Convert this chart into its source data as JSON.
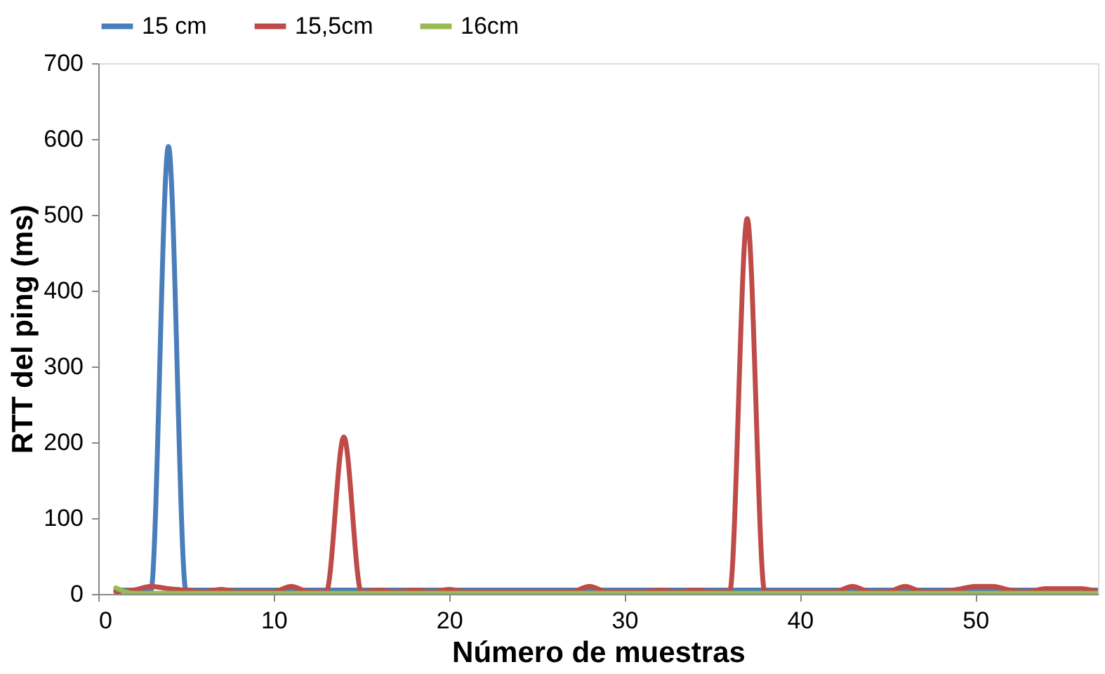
{
  "chart_data": {
    "type": "line",
    "xlabel": "Número de muestras",
    "ylabel": "RTT del ping (ms)",
    "x": [
      1,
      2,
      3,
      4,
      5,
      6,
      7,
      8,
      9,
      10,
      11,
      12,
      13,
      14,
      15,
      16,
      17,
      18,
      19,
      20,
      21,
      22,
      23,
      24,
      25,
      26,
      27,
      28,
      29,
      30,
      31,
      32,
      33,
      34,
      35,
      36,
      37,
      38,
      39,
      40,
      41,
      42,
      43,
      44,
      45,
      46,
      47,
      48,
      49,
      50,
      51,
      52,
      53,
      54,
      55,
      56,
      57
    ],
    "series": [
      {
        "name": "15 cm",
        "color": "#4a7ebb",
        "values": [
          5,
          5,
          5,
          590,
          5,
          5,
          5,
          5,
          5,
          5,
          5,
          5,
          5,
          5,
          5,
          5,
          5,
          5,
          5,
          5,
          5,
          5,
          5,
          5,
          5,
          5,
          5,
          5,
          5,
          5,
          5,
          5,
          5,
          5,
          5,
          5,
          5,
          5,
          5,
          5,
          5,
          5,
          5,
          5,
          5,
          5,
          5,
          5,
          5,
          5,
          5,
          5,
          5,
          5,
          5,
          5,
          5
        ]
      },
      {
        "name": "15,5cm",
        "color": "#be4b48",
        "values": [
          3,
          5,
          10,
          7,
          5,
          3,
          6,
          3,
          3,
          3,
          10,
          3,
          3,
          207,
          3,
          5,
          3,
          5,
          3,
          6,
          3,
          3,
          3,
          3,
          3,
          3,
          3,
          10,
          3,
          3,
          3,
          5,
          3,
          5,
          3,
          3,
          495,
          3,
          3,
          3,
          3,
          3,
          10,
          3,
          3,
          10,
          3,
          3,
          6,
          10,
          10,
          5,
          3,
          7,
          7,
          7,
          3
        ]
      },
      {
        "name": "16cm",
        "color": "#98b954",
        "values": [
          8,
          1,
          1,
          1,
          1,
          1,
          1,
          1,
          1,
          1,
          1,
          1,
          1,
          1,
          1,
          1,
          1,
          1,
          1,
          1,
          1,
          1,
          1,
          1,
          1,
          1,
          1,
          1,
          1,
          1,
          1,
          1,
          1,
          1,
          1,
          1,
          1,
          1,
          1,
          1,
          1,
          1,
          1,
          1,
          1,
          1,
          1,
          1,
          1,
          1,
          1,
          1,
          1,
          1,
          1,
          1,
          1
        ]
      }
    ],
    "xlim": [
      0,
      57
    ],
    "xticks": [
      0,
      10,
      20,
      30,
      40,
      50
    ],
    "ylim": [
      0,
      700
    ],
    "yticks": [
      0,
      100,
      200,
      300,
      400,
      500,
      600,
      700
    ],
    "grid": false,
    "legend": "top",
    "marker": "none",
    "line_style": "solid"
  }
}
